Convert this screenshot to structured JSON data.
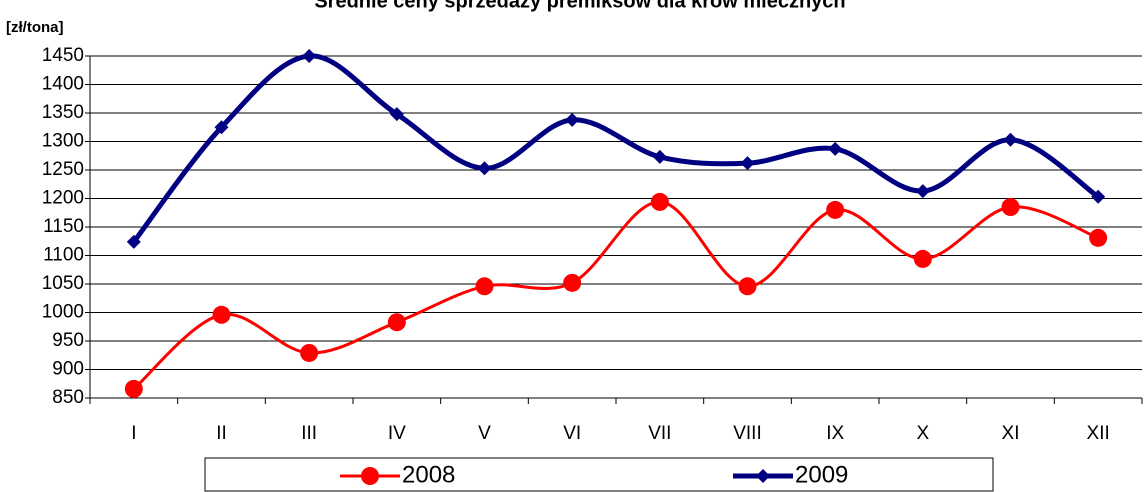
{
  "chart_data": {
    "type": "line",
    "title": "Średnie ceny sprzedaży premiksów dla krów mlecznych",
    "y_label": "[zł/tona]",
    "categories": [
      "I",
      "II",
      "III",
      "IV",
      "V",
      "VI",
      "VII",
      "VIII",
      "IX",
      "X",
      "XI",
      "XII"
    ],
    "series": [
      {
        "name": "2008",
        "color": "#ff0000",
        "marker": "circle",
        "values": [
          866,
          996,
          929,
          983,
          1046,
          1052,
          1194,
          1046,
          1180,
          1094,
          1185,
          1131
        ]
      },
      {
        "name": "2009",
        "color": "#000080",
        "marker": "diamond",
        "values": [
          1124,
          1325,
          1450,
          1348,
          1253,
          1338,
          1273,
          1262,
          1287,
          1213,
          1303,
          1203
        ]
      }
    ],
    "ylim": [
      850,
      1450
    ],
    "yticks": [
      850,
      900,
      950,
      1000,
      1050,
      1100,
      1150,
      1200,
      1250,
      1300,
      1350,
      1400,
      1450
    ],
    "grid": true,
    "smooth": true,
    "legend": "bottom"
  }
}
